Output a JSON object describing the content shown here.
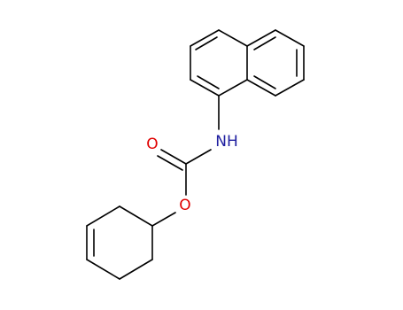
{
  "atoms": {
    "carbonyl_oxygen": "O",
    "ester_oxygen": "O",
    "amine": "NH"
  }
}
